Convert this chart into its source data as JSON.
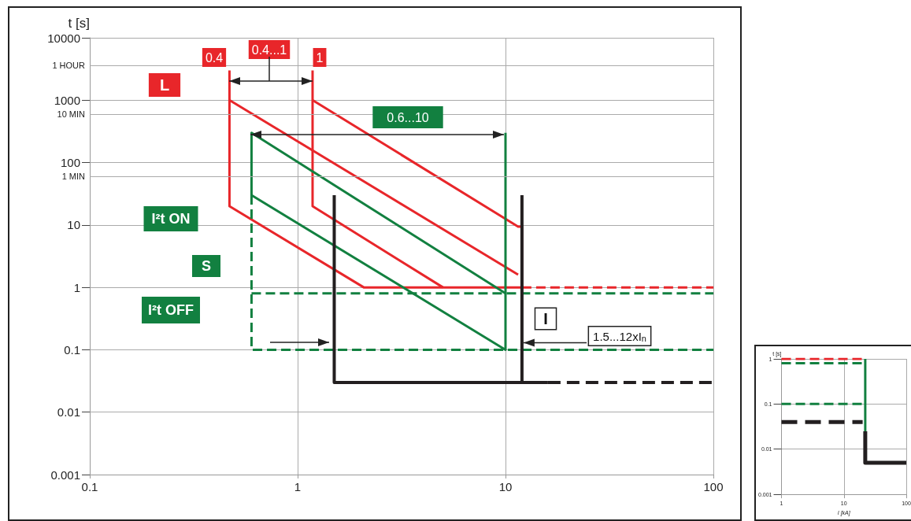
{
  "chart_data": [
    {
      "type": "line",
      "ylabel": "t [s]",
      "xlim": [
        0.1,
        100
      ],
      "xticks": [
        0.1,
        1,
        10,
        100
      ],
      "ylim": [
        0.001,
        10000
      ],
      "yticks": [
        0.001,
        0.01,
        0.1,
        1,
        10,
        100,
        1000,
        10000
      ],
      "log": "xy",
      "grid": true,
      "marker": "none",
      "ref_lines": [
        {
          "axis": "y",
          "value": 60,
          "label": "1 MIN"
        },
        {
          "axis": "y",
          "value": 600,
          "label": "10 MIN"
        },
        {
          "axis": "y",
          "value": 3600,
          "label": "1 HOUR"
        }
      ],
      "series": [
        {
          "color": "#e8262a",
          "line_style": "solid",
          "x": [
            0.47,
            0.47,
            2.08,
            12
          ],
          "values": [
            3000,
            20,
            1,
            1
          ]
        },
        {
          "color": "#e8262a",
          "line_style": "solid",
          "x": [
            0.47,
            11.5
          ],
          "values": [
            1000,
            1.6
          ]
        },
        {
          "color": "#e8262a",
          "line_style": "solid",
          "x": [
            1.18,
            1.18,
            5
          ],
          "values": [
            3000,
            20,
            1
          ]
        },
        {
          "color": "#e8262a",
          "line_style": "solid",
          "x": [
            1.18,
            11.5,
            12,
            12
          ],
          "values": [
            1000,
            9.4,
            9.4,
            1
          ]
        },
        {
          "color": "#e8262a",
          "line_style": "dashed",
          "x": [
            12,
            100
          ],
          "values": [
            1,
            1
          ]
        },
        {
          "color": "#128040",
          "line_style": "solid",
          "x": [
            0.6,
            0.6,
            10
          ],
          "values": [
            30,
            300,
            0.8
          ]
        },
        {
          "color": "#128040",
          "line_style": "solid",
          "x": [
            0.6,
            10,
            10
          ],
          "values": [
            30,
            0.1,
            300
          ]
        },
        {
          "color": "#128040",
          "line_style": "dashed",
          "x": [
            0.6,
            0.6,
            100
          ],
          "values": [
            30,
            0.1,
            0.1
          ]
        },
        {
          "color": "#128040",
          "line_style": "dashed",
          "x": [
            0.6,
            100
          ],
          "values": [
            0.8,
            0.8
          ]
        },
        {
          "color": "#231f20",
          "line_style": "solid",
          "x": [
            1.5,
            1.5,
            16
          ],
          "values": [
            30,
            0.03,
            0.03
          ]
        },
        {
          "color": "#231f20",
          "line_style": "solid",
          "x": [
            12,
            12
          ],
          "values": [
            30,
            0.03
          ]
        },
        {
          "color": "#231f20",
          "line_style": "dashed",
          "x": [
            16,
            100
          ],
          "values": [
            0.03,
            0.03
          ]
        }
      ],
      "annotations": [
        "0.4",
        "0.4...1",
        "1",
        "L",
        "0.6...10",
        "I²t ON",
        "S",
        "I²t OFF",
        "I",
        {
          "text": "1.5...12xI$_{n}$",
          "x": 12,
          "y": 0.13
        }
      ]
    },
    {
      "type": "line",
      "ylabel": "t [s]",
      "xlabel": "I [kA]",
      "xlim": [
        1,
        100
      ],
      "xticks": [
        1,
        10,
        100
      ],
      "ylim": [
        0.001,
        1
      ],
      "yticks": [
        0.001,
        0.01,
        0.1,
        1
      ],
      "log": "xy",
      "grid": true,
      "marker": "none",
      "series": [
        {
          "color": "#e8262a",
          "line_style": "dashed",
          "x": [
            1,
            21
          ],
          "values": [
            1,
            1
          ]
        },
        {
          "color": "#128040",
          "line_style": "dashed",
          "x": [
            1,
            21
          ],
          "values": [
            0.8,
            0.8
          ]
        },
        {
          "color": "#128040",
          "line_style": "dashed",
          "x": [
            1,
            20
          ],
          "values": [
            0.1,
            0.1
          ]
        },
        {
          "color": "#231f20",
          "line_style": "dashed",
          "x": [
            1,
            20
          ],
          "values": [
            0.04,
            0.04
          ]
        },
        {
          "color": "#128040",
          "line_style": "solid",
          "x": [
            22,
            22
          ],
          "values": [
            1,
            0.025
          ]
        },
        {
          "color": "#231f20",
          "line_style": "solid",
          "x": [
            22,
            22,
            100
          ],
          "values": [
            0.025,
            0.005,
            0.005
          ]
        }
      ]
    }
  ]
}
